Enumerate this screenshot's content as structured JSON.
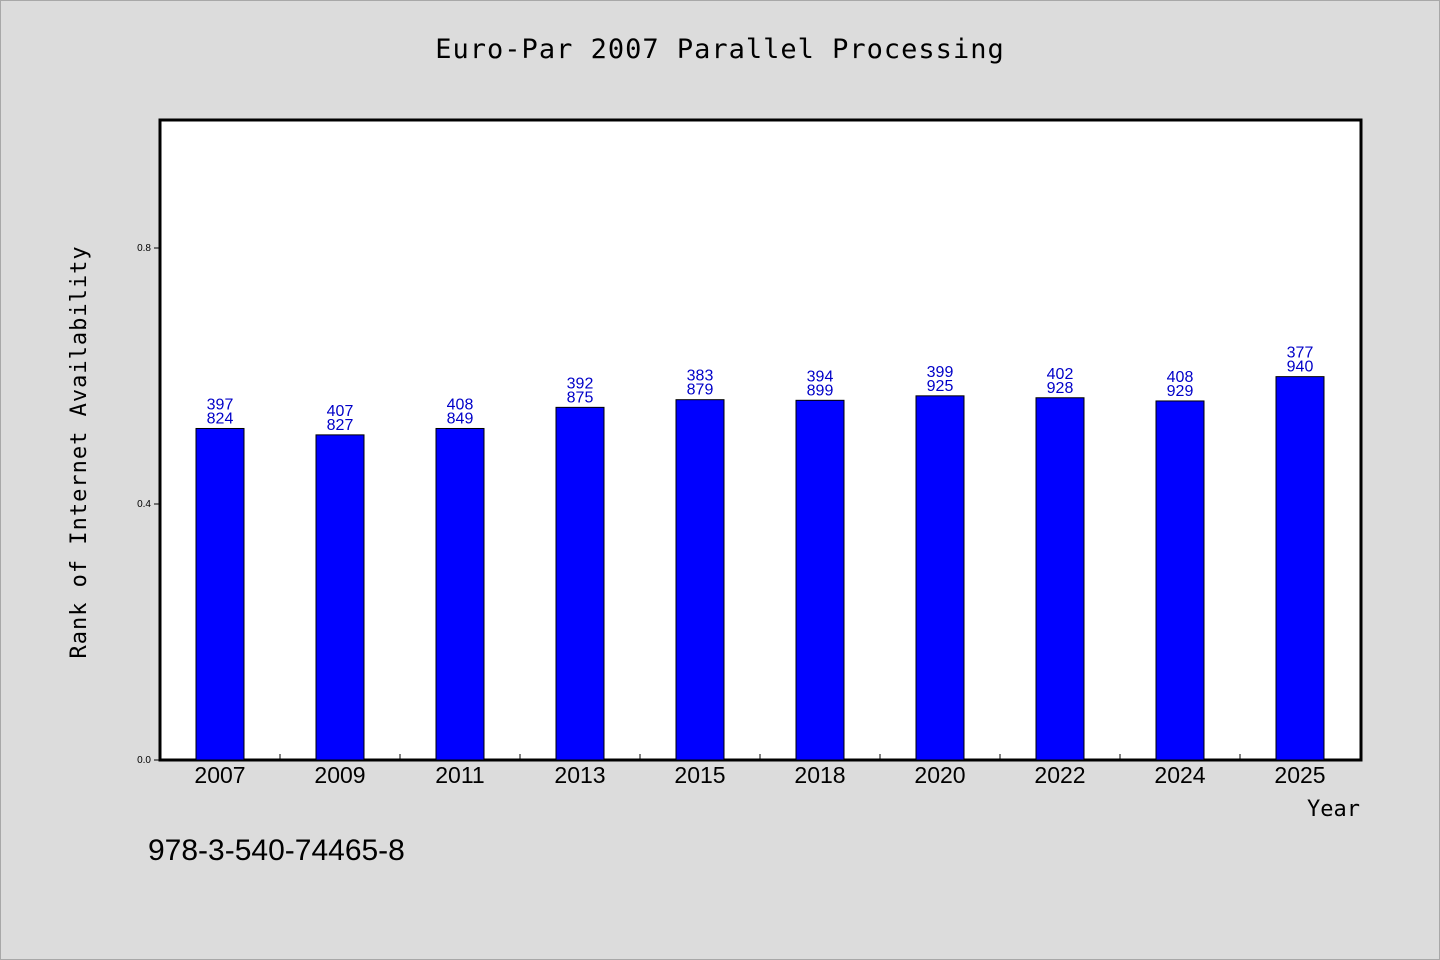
{
  "title": "Euro-Par 2007 Parallel Processing",
  "footer_text": "978-3-540-74465-8",
  "colors": {
    "background": "#dcdcdc",
    "plot_area": "#ffffff",
    "bar_fill": "#0000ff",
    "bar_label": "#0000c8"
  },
  "chart_data": {
    "type": "bar",
    "title": "Euro-Par 2007 Parallel Processing",
    "xlabel": "Year",
    "ylabel": "Rank of Internet Availability",
    "categories": [
      "2007",
      "2009",
      "2011",
      "2013",
      "2015",
      "2018",
      "2020",
      "2022",
      "2024",
      "2025"
    ],
    "values": [
      0.518,
      0.508,
      0.518,
      0.551,
      0.563,
      0.562,
      0.569,
      0.566,
      0.561,
      0.599
    ],
    "bar_labels": [
      [
        "397",
        "824"
      ],
      [
        "407",
        "827"
      ],
      [
        "408",
        "849"
      ],
      [
        "392",
        "875"
      ],
      [
        "383",
        "879"
      ],
      [
        "394",
        "899"
      ],
      [
        "399",
        "925"
      ],
      [
        "402",
        "928"
      ],
      [
        "408",
        "929"
      ],
      [
        "377",
        "940"
      ]
    ],
    "yticks": [
      0.0,
      0.4,
      0.8
    ],
    "ytick_labels": [
      "0.0",
      "0.4",
      "0.8"
    ],
    "ylim": [
      0,
      1.0
    ],
    "grid": false,
    "legend": "none"
  }
}
